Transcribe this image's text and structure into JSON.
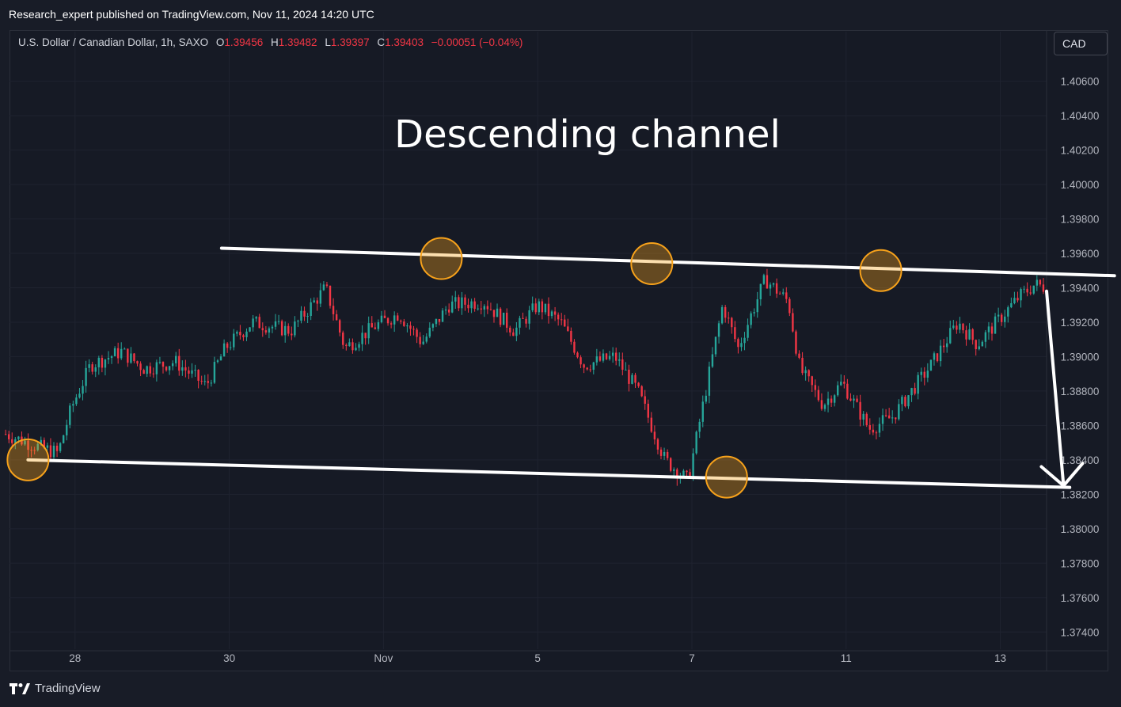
{
  "header": {
    "published_line": "Research_expert published on TradingView.com, Nov 11, 2024 14:20 UTC"
  },
  "legend": {
    "symbol": "U.S. Dollar / Canadian Dollar, 1h, SAXO",
    "o_label": "O",
    "o_value": "1.39456",
    "h_label": "H",
    "h_value": "1.39482",
    "l_label": "L",
    "l_value": "1.39397",
    "c_label": "C",
    "c_value": "1.39403",
    "change": "−0.00051 (−0.04%)"
  },
  "currency_button": "CAD",
  "footer": {
    "brand": "TradingView"
  },
  "colors": {
    "up": "#26a69a",
    "down": "#f23645",
    "background": "#161a25",
    "grid": "#1f2330",
    "annotation": "#ffffff",
    "highlight": "#f7a21b"
  },
  "chart_data": {
    "type": "candlestick",
    "title": "Descending channel",
    "symbol": "USD/CAD",
    "timeframe": "1h",
    "ylim": [
      1.373,
      1.4075
    ],
    "y_ticks": [
      "1.40600",
      "1.40400",
      "1.40200",
      "1.40000",
      "1.39800",
      "1.39600",
      "1.39400",
      "1.39200",
      "1.39000",
      "1.38800",
      "1.38600",
      "1.38400",
      "1.38200",
      "1.38000",
      "1.37800",
      "1.37600",
      "1.37400"
    ],
    "x_ticks": [
      "28",
      "30",
      "Nov",
      "5",
      "7",
      "11",
      "13"
    ],
    "x_tick_days": [
      1,
      3,
      5,
      7,
      9,
      11,
      13
    ],
    "x_range_days": [
      0.15,
      13.6
    ],
    "close_path": [
      [
        0.1,
        1.3855
      ],
      [
        0.5,
        1.3848
      ],
      [
        0.78,
        1.3844
      ],
      [
        0.95,
        1.387
      ],
      [
        1.2,
        1.3895
      ],
      [
        1.6,
        1.3903
      ],
      [
        1.9,
        1.3893
      ],
      [
        2.3,
        1.3897
      ],
      [
        2.7,
        1.3883
      ],
      [
        2.95,
        1.3905
      ],
      [
        3.3,
        1.392
      ],
      [
        3.8,
        1.3915
      ],
      [
        4.25,
        1.394
      ],
      [
        4.5,
        1.3905
      ],
      [
        4.9,
        1.3918
      ],
      [
        5.2,
        1.3925
      ],
      [
        5.5,
        1.3908
      ],
      [
        5.85,
        1.393
      ],
      [
        6.3,
        1.3932
      ],
      [
        6.7,
        1.3915
      ],
      [
        7.0,
        1.393
      ],
      [
        7.3,
        1.392
      ],
      [
        7.6,
        1.3895
      ],
      [
        8.0,
        1.39
      ],
      [
        8.3,
        1.388
      ],
      [
        8.65,
        1.384
      ],
      [
        8.95,
        1.3828
      ],
      [
        9.4,
        1.393
      ],
      [
        9.6,
        1.3905
      ],
      [
        9.95,
        1.3945
      ],
      [
        10.25,
        1.3932
      ],
      [
        10.4,
        1.3893
      ],
      [
        10.7,
        1.3872
      ],
      [
        10.95,
        1.3885
      ],
      [
        11.3,
        1.3858
      ],
      [
        11.6,
        1.3865
      ],
      [
        12.1,
        1.3895
      ],
      [
        12.45,
        1.392
      ],
      [
        12.7,
        1.3907
      ],
      [
        13.05,
        1.3925
      ],
      [
        13.25,
        1.3935
      ],
      [
        13.45,
        1.3942
      ],
      [
        13.6,
        1.394
      ]
    ],
    "annotations": {
      "channel_upper": {
        "start": [
          2.9,
          1.3963
        ],
        "end": [
          14.48,
          1.3947
        ]
      },
      "channel_lower": {
        "start": [
          0.39,
          1.384
        ],
        "end": [
          13.9,
          1.3824
        ]
      },
      "arrow": {
        "from": [
          13.6,
          1.3938
        ],
        "to": [
          13.82,
          1.3825
        ]
      },
      "touch_points": [
        [
          0.39,
          1.384
        ],
        [
          5.75,
          1.3957
        ],
        [
          8.48,
          1.3954
        ],
        [
          11.45,
          1.395
        ],
        [
          9.45,
          1.383
        ]
      ]
    }
  }
}
